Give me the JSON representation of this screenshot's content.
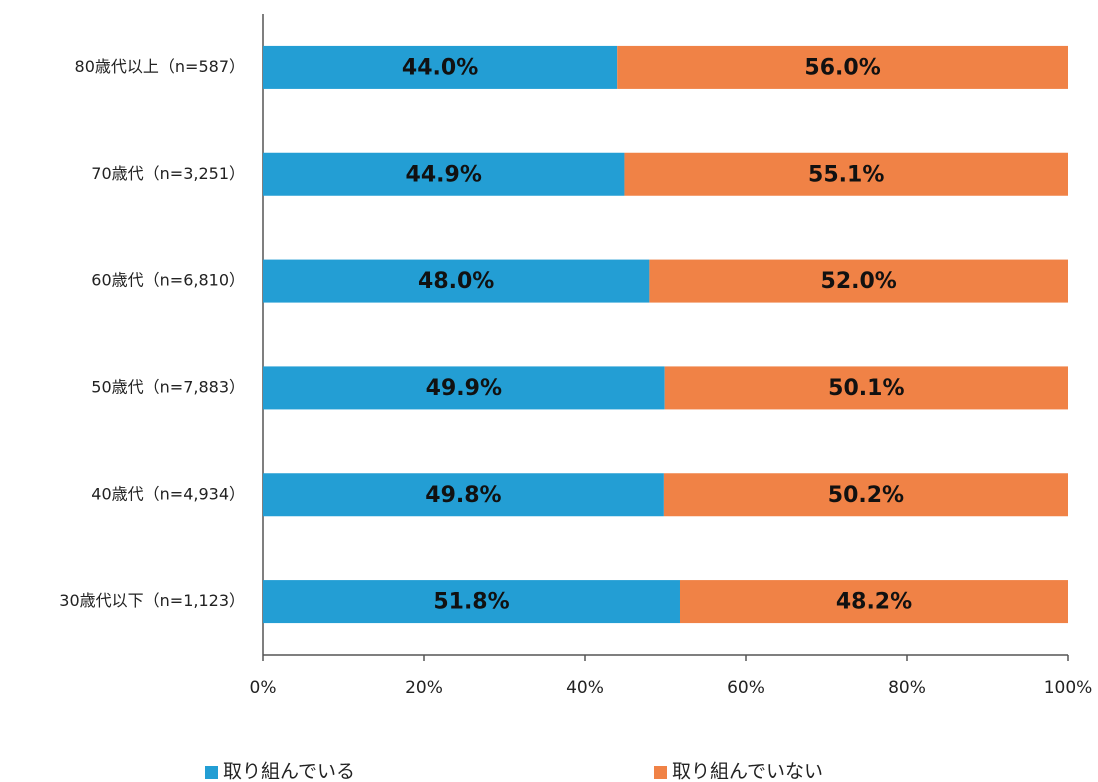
{
  "chart_data": {
    "type": "stacked-barh",
    "categories": [
      "80歳代以上（n=587）",
      "70歳代（n=3,251）",
      "60歳代（n=6,810）",
      "50歳代（n=7,883）",
      "40歳代（n=4,934）",
      "30歳代以下（n=1,123）"
    ],
    "series": [
      {
        "name": "取り組んでいる",
        "color": "#239ed4",
        "values": [
          44.0,
          44.9,
          48.0,
          49.9,
          49.8,
          51.8
        ],
        "value_labels": [
          "44.0%",
          "44.9%",
          "48.0%",
          "49.9%",
          "49.8%",
          "51.8%"
        ]
      },
      {
        "name": "取り組んでいない",
        "color": "#f08246",
        "values": [
          56.0,
          55.1,
          52.0,
          50.1,
          50.2,
          48.2
        ],
        "value_labels": [
          "56.0%",
          "55.1%",
          "52.0%",
          "50.1%",
          "50.2%",
          "48.2%"
        ]
      }
    ],
    "xlim": [
      0,
      100
    ],
    "xticks": [
      {
        "value": 0,
        "label": "0%"
      },
      {
        "value": 20,
        "label": "20%"
      },
      {
        "value": 40,
        "label": "40%"
      },
      {
        "value": 60,
        "label": "60%"
      },
      {
        "value": 80,
        "label": "80%"
      },
      {
        "value": 100,
        "label": "100%"
      }
    ],
    "legend": "bottom"
  }
}
